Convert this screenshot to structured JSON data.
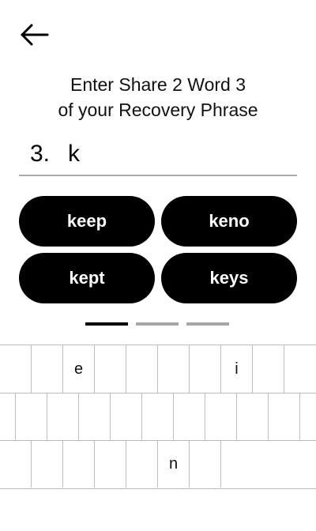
{
  "header": {
    "back_icon": "arrow-left-icon"
  },
  "title": {
    "line1": "Enter Share 2 Word 3",
    "line2": "of your Recovery Phrase"
  },
  "word_entry": {
    "index": "3.",
    "value": "k"
  },
  "suggestions": [
    "keep",
    "keno",
    "kept",
    "keys"
  ],
  "pager": {
    "total": 3,
    "active": 0
  },
  "keyboard": {
    "rows": [
      [
        "",
        "",
        "e",
        "",
        "",
        "",
        "",
        "i",
        "",
        ""
      ],
      [
        "",
        "",
        "",
        "",
        "",
        "",
        "",
        "",
        "",
        ""
      ],
      [
        "",
        "",
        "",
        "",
        "",
        "n",
        "",
        ""
      ]
    ]
  }
}
